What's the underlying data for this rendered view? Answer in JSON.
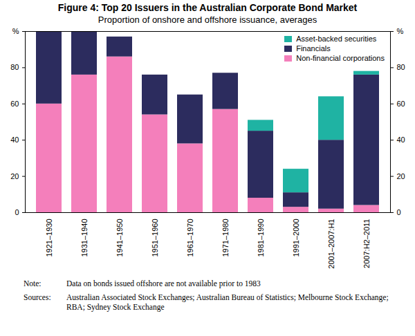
{
  "chart_data": {
    "type": "bar",
    "stacked": true,
    "title": "Figure 4: Top 20 Issuers in the Australian Corporate Bond Market",
    "subtitle": "Proportion of onshore and offshore issuance, averages",
    "categories": [
      "1921–1930",
      "1931–1940",
      "1941–1950",
      "1951–1960",
      "1961–1970",
      "1971–1980",
      "1981–1990",
      "1991–2000",
      "2001–2007:H1",
      "2007:H2–2011"
    ],
    "series": [
      {
        "name": "Non-financial corporations",
        "color": "#f47fbb",
        "values": [
          60,
          76,
          86,
          54,
          38,
          57,
          8,
          3,
          2,
          4
        ]
      },
      {
        "name": "Financials",
        "color": "#2c2c5e",
        "values": [
          40,
          24,
          11,
          22,
          27,
          20,
          37,
          8,
          38,
          72
        ]
      },
      {
        "name": "Asset-backed securities",
        "color": "#1fb3a3",
        "values": [
          0,
          0,
          0,
          0,
          0,
          0,
          6,
          13,
          24,
          2
        ]
      }
    ],
    "ylim": [
      0,
      100
    ],
    "yticks": [
      0,
      20,
      40,
      60,
      80,
      {
        "value": 100,
        "label": "%"
      }
    ],
    "grid": false,
    "legend": "top-right",
    "note_label": "Note:",
    "note": "Data on bonds issued offshore are not available prior to 1983",
    "sources_label": "Sources:",
    "sources": "Australian Associated Stock Exchanges; Australian Bureau of Statistics; Melbourne Stock Exchange; RBA; Sydney Stock Exchange"
  }
}
